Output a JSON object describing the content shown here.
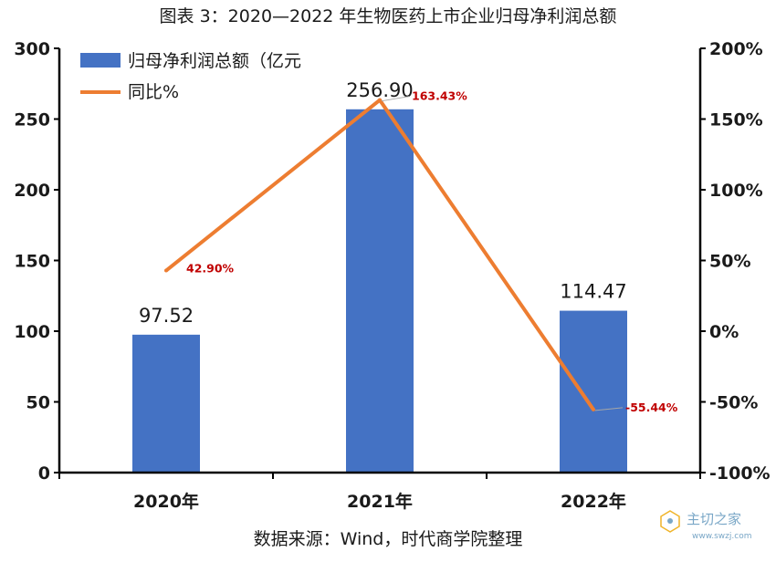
{
  "title": "图表 3：2020—2022 年生物医药上市企业归母净利润总额",
  "source": "数据来源：Wind，时代商学院整理",
  "watermark": {
    "name": "主切之家",
    "url": "www.swzj.com"
  },
  "colors": {
    "bar": "#4472C4",
    "line": "#ED7D31",
    "label_red": "#C00000",
    "axis": "#000000"
  },
  "chart_data": {
    "type": "bar",
    "categories": [
      "2020年",
      "2021年",
      "2022年"
    ],
    "series": [
      {
        "name": "归母净利润总额（亿元",
        "type": "bar",
        "axis": "left",
        "values": [
          97.52,
          256.9,
          114.47
        ],
        "labels": [
          "97.52",
          "256.90",
          "114.47"
        ]
      },
      {
        "name": "同比%",
        "type": "line",
        "axis": "right",
        "values": [
          42.9,
          163.43,
          -55.44
        ],
        "labels": [
          "42.90%",
          "163.43%",
          "-55.44%"
        ]
      }
    ],
    "y_left": {
      "min": 0,
      "max": 300,
      "ticks": [
        0,
        50,
        100,
        150,
        200,
        250,
        300
      ],
      "tick_labels": [
        "0",
        "50",
        "100",
        "150",
        "200",
        "250",
        "300"
      ]
    },
    "y_right": {
      "min": -100,
      "max": 200,
      "ticks": [
        -100,
        -50,
        0,
        50,
        100,
        150,
        200
      ],
      "tick_labels": [
        "-100%",
        "-50%",
        "0%",
        "50%",
        "100%",
        "150%",
        "200%"
      ]
    },
    "legend_position": "top-left",
    "grid": false
  }
}
